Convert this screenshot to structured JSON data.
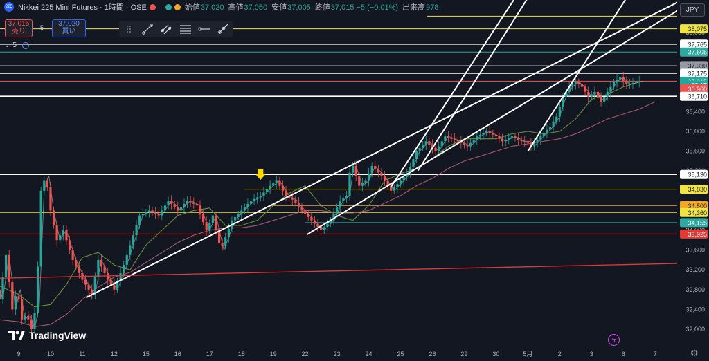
{
  "header": {
    "symbol_icon": "225",
    "title": "Nikkei 225 Mini Futures · 1時間 · OSE",
    "ohlc": [
      {
        "label": "始値",
        "value": "37,020"
      },
      {
        "label": "高値",
        "value": "37,050"
      },
      {
        "label": "安値",
        "value": "37,005"
      },
      {
        "label": "終値",
        "value": "37,015 −5 (−0.01%)"
      },
      {
        "label": "出来高",
        "value": "978"
      }
    ],
    "currency": "JPY"
  },
  "trade": {
    "sell_price": "37,015",
    "sell_label": "売り",
    "spread": "5",
    "buy_price": "37,020",
    "buy_label": "買い"
  },
  "indicator_row": {
    "label": "5"
  },
  "branding": {
    "logo_text": "TradingView"
  },
  "colors": {
    "background": "#131722",
    "up": "#26a69a",
    "down": "#ef5350",
    "ma_fast": "#6b8f3a",
    "ma_slow": "#a85a6e",
    "trendline": "#ffffff",
    "yellow_level": "#f0e442",
    "orange_level": "#f5a623",
    "red_level": "#e53935",
    "teal_level": "#2fa8a0",
    "arrow": "#ffd600"
  },
  "chart_data": {
    "type": "line",
    "title": "Nikkei 225 Mini Futures · 1時間 · OSE",
    "x_ticks": [
      "9",
      "10",
      "11",
      "12",
      "15",
      "16",
      "17",
      "18",
      "19",
      "22",
      "23",
      "24",
      "25",
      "26",
      "29",
      "30",
      "5月",
      "2",
      "3",
      "6",
      "7"
    ],
    "y_ticks": [
      32000,
      32400,
      32800,
      33200,
      33600,
      34000,
      34400,
      34800,
      35200,
      35600,
      36000,
      36400,
      36800,
      37200,
      37600,
      38000
    ],
    "ylim": [
      31900,
      38600
    ],
    "y_axis_side": "right",
    "grid": false,
    "price_labels": [
      {
        "label": "38,075",
        "value": 38075,
        "color": "#f0e442",
        "text_color": "#131722"
      },
      {
        "label": "37,765",
        "value": 37765,
        "color": "#ffffff",
        "text_color": "#131722"
      },
      {
        "label": "37,605",
        "value": 37605,
        "color": "#2fa8a0",
        "text_color": "#ffffff"
      },
      {
        "label": "37,330",
        "value": 37330,
        "color": "#9598a1",
        "text_color": "#131722"
      },
      {
        "label": "37,175",
        "value": 37175,
        "color": "#ffffff",
        "text_color": "#131722"
      },
      {
        "label": "37,015",
        "value": 37015,
        "color": "#26a69a",
        "text_color": "#ffffff"
      },
      {
        "label": "58:17",
        "value": 36935,
        "color": "#26a69a",
        "text_color": "#ffffff"
      },
      {
        "label": "36,960",
        "value": 36860,
        "color": "#ef5350",
        "text_color": "#ffffff"
      },
      {
        "label": "36,710",
        "value": 36710,
        "color": "#ffffff",
        "text_color": "#131722"
      },
      {
        "label": "35,130",
        "value": 35130,
        "color": "#ffffff",
        "text_color": "#131722"
      },
      {
        "label": "34,830",
        "value": 34830,
        "color": "#f0e442",
        "text_color": "#131722"
      },
      {
        "label": "34,500",
        "value": 34500,
        "color": "#f5a623",
        "text_color": "#131722"
      },
      {
        "label": "34,360",
        "value": 34360,
        "color": "#f0e442",
        "text_color": "#131722"
      },
      {
        "label": "34,155",
        "value": 34155,
        "color": "#2fa8a0",
        "text_color": "#ffffff"
      },
      {
        "label": "33,925",
        "value": 33925,
        "color": "#e53935",
        "text_color": "#ffffff"
      }
    ],
    "horizontal_levels": [
      {
        "value": 38330,
        "color": "#f0e442",
        "from": 0.63
      },
      {
        "value": 38075,
        "color": "#f0e442",
        "from": 0
      },
      {
        "value": 37765,
        "color": "#ffffff",
        "from": 0
      },
      {
        "value": 37605,
        "color": "#2fa8a0",
        "from": 0
      },
      {
        "value": 37330,
        "color": "#9598a1",
        "from": 0
      },
      {
        "value": 37175,
        "color": "#ffffff",
        "from": 0
      },
      {
        "value": 37015,
        "color": "#ef5350",
        "from": 0
      },
      {
        "value": 36710,
        "color": "#ffffff",
        "from": 0
      },
      {
        "value": 35130,
        "color": "#ffffff",
        "from": 0
      },
      {
        "value": 34830,
        "color": "#f0e442",
        "from": 0.36
      },
      {
        "value": 34500,
        "color": "#f5a623",
        "from": 0.4
      },
      {
        "value": 34360,
        "color": "#f0e442",
        "from": 0
      },
      {
        "value": 34155,
        "color": "#2fa8a0",
        "from": 0.45
      },
      {
        "value": 33925,
        "color": "#e53935",
        "from": 0
      }
    ],
    "trendlines": [
      {
        "x1": 2.12,
        "y1": 32640,
        "x2": 20.95,
        "y2": 38690,
        "color": "#ffffff"
      },
      {
        "x1": 9.05,
        "y1": 33910,
        "x2": 20.8,
        "y2": 38480,
        "color": "#ffffff"
      },
      {
        "x1": 11.7,
        "y1": 34880,
        "x2": 15.6,
        "y2": 38700,
        "color": "#ffffff"
      },
      {
        "x1": 12.55,
        "y1": 35210,
        "x2": 16.0,
        "y2": 38700,
        "color": "#ffffff"
      },
      {
        "x1": 16.0,
        "y1": 35600,
        "x2": 19.1,
        "y2": 38700,
        "color": "#ffffff"
      },
      {
        "x1": -0.7,
        "y1": 33030,
        "x2": 21.5,
        "y2": 33340,
        "color": "#e53935"
      }
    ],
    "series": [
      {
        "name": "",
        "color": "#6b8f3a",
        "x": [
          -0.7,
          0.0,
          0.5,
          1.0,
          1.5,
          2.0,
          2.5,
          3.0,
          3.5,
          4.0,
          4.5,
          5.0,
          5.5,
          6.0,
          6.5,
          7.0,
          7.5,
          8.0,
          8.5,
          9.0,
          9.5,
          10.0,
          10.5,
          11.0,
          11.5,
          12.0,
          12.5,
          13.0,
          13.5,
          14.0,
          14.5,
          15.0,
          15.5,
          16.0,
          16.5,
          17.0,
          17.5,
          18.0,
          18.5,
          19.0,
          19.5
        ],
        "values": [
          32900,
          32700,
          32450,
          32500,
          32900,
          33450,
          33550,
          33300,
          33200,
          33700,
          34000,
          34300,
          34400,
          34450,
          34100,
          34100,
          34200,
          34500,
          34750,
          34900,
          34500,
          34300,
          34200,
          34500,
          35000,
          35150,
          35250,
          35450,
          35700,
          35850,
          35850,
          35850,
          35950,
          36000,
          35950,
          36000,
          36250,
          36650,
          36750,
          36900,
          37000
        ]
      },
      {
        "name": "",
        "color": "#a85a6e",
        "x": [
          -0.7,
          0.0,
          0.5,
          1.0,
          1.5,
          2.0,
          2.5,
          3.0,
          3.5,
          4.0,
          4.5,
          5.0,
          5.5,
          6.0,
          6.5,
          7.0,
          7.5,
          8.0,
          8.5,
          9.0,
          9.5,
          10.0,
          10.5,
          11.0,
          11.5,
          12.0,
          12.5,
          13.0,
          13.5,
          14.0,
          14.5,
          15.0,
          15.5,
          16.0,
          16.5,
          17.0,
          17.5,
          18.0,
          18.5,
          19.0,
          19.5,
          20.0
        ],
        "values": [
          32200,
          32150,
          32050,
          32100,
          32300,
          32600,
          32850,
          33050,
          33150,
          33350,
          33550,
          33750,
          33900,
          34000,
          34050,
          34050,
          34100,
          34200,
          34300,
          34400,
          34400,
          34350,
          34350,
          34400,
          34550,
          34700,
          34900,
          35050,
          35250,
          35400,
          35500,
          35600,
          35700,
          35750,
          35800,
          35850,
          35950,
          36100,
          36250,
          36350,
          36450,
          36600
        ]
      },
      {
        "name": "",
        "color": "#d1d4dc",
        "x": [
          -0.7,
          -0.5,
          -0.3,
          -0.1,
          0.05,
          0.2,
          0.35,
          0.5,
          0.65,
          0.8,
          0.95,
          1.1,
          1.3,
          1.5,
          1.8,
          2.1,
          2.4,
          2.6,
          2.9,
          3.1,
          3.4,
          3.7,
          3.9,
          4.2,
          4.5,
          4.8,
          5.1,
          5.4,
          5.7,
          6.0,
          6.2,
          6.45,
          6.8,
          7.1,
          7.4,
          7.7,
          8.0,
          8.2,
          8.5,
          8.75,
          9.0,
          9.3,
          9.6,
          9.9,
          10.2,
          10.4,
          10.55,
          10.8,
          11.0,
          11.2,
          11.5,
          11.8,
          12.1,
          12.35,
          12.6,
          12.9,
          13.2,
          13.5,
          13.9,
          14.2,
          14.5,
          14.8,
          15.1,
          15.3,
          15.6,
          15.9,
          16.05,
          16.2,
          16.5,
          16.8,
          17.0,
          17.2,
          17.4,
          17.6,
          17.8,
          18.0,
          18.2,
          18.4,
          18.6,
          18.8,
          19.0,
          19.2,
          19.4,
          19.6
        ],
        "values": [
          33000,
          32600,
          33500,
          32400,
          32800,
          32200,
          32300,
          32000,
          32500,
          34800,
          35100,
          34400,
          33800,
          34000,
          33400,
          33000,
          32700,
          33400,
          33000,
          32800,
          33300,
          33900,
          34300,
          34400,
          34300,
          34600,
          34400,
          34600,
          34500,
          34000,
          34300,
          33600,
          34200,
          34400,
          34600,
          34700,
          34900,
          35000,
          34700,
          34600,
          34400,
          34200,
          34000,
          34200,
          34600,
          34700,
          35400,
          34900,
          35000,
          35300,
          35100,
          34800,
          35000,
          35200,
          35600,
          35800,
          35600,
          35900,
          35800,
          35700,
          35900,
          36000,
          35900,
          35800,
          35900,
          35800,
          35800,
          35700,
          35900,
          36100,
          36300,
          36700,
          36900,
          37000,
          36900,
          36700,
          36800,
          36600,
          36800,
          37000,
          37100,
          36950,
          36980,
          37015
        ]
      }
    ],
    "annotation": {
      "type": "arrow-down",
      "x": 7.6,
      "value": 35020,
      "color": "#ffd600"
    }
  }
}
